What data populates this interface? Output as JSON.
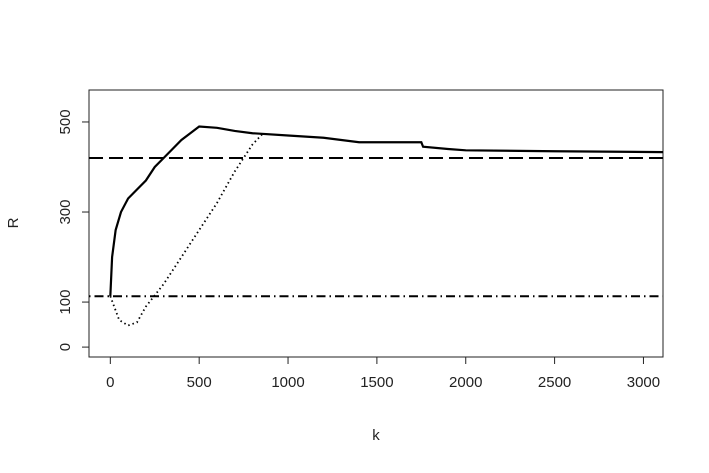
{
  "chart_data": {
    "type": "line",
    "xlabel": "k",
    "ylabel": "R",
    "xlim": [
      -120,
      3110
    ],
    "ylim": [
      -22,
      571
    ],
    "xticks": [
      0,
      500,
      1000,
      1500,
      2000,
      2500,
      3000
    ],
    "yticks": [
      0,
      100,
      300,
      500
    ],
    "series": [
      {
        "color": "#000000",
        "style": "solid",
        "x": [
          0,
          10,
          30,
          60,
          100,
          150,
          200,
          250,
          300,
          350,
          400,
          450,
          500,
          600,
          700,
          800,
          1000,
          1200,
          1400,
          1750,
          1760,
          1900,
          2000,
          2500,
          3110
        ],
        "values": [
          113,
          200,
          260,
          300,
          330,
          350,
          370,
          400,
          420,
          440,
          460,
          475,
          490,
          487,
          480,
          475,
          470,
          465,
          455,
          455,
          445,
          440,
          437,
          435,
          433
        ]
      },
      {
        "color": "#000000",
        "style": "dotted",
        "x": [
          0,
          50,
          100,
          150,
          200,
          250,
          300,
          400,
          500,
          600,
          700,
          800,
          860
        ],
        "values": [
          113,
          60,
          48,
          55,
          90,
          115,
          140,
          200,
          260,
          320,
          390,
          450,
          475
        ]
      }
    ],
    "hlines": [
      {
        "value": 420,
        "color": "#000000",
        "style": "dashed"
      },
      {
        "value": 113,
        "color": "#000000",
        "style": "dotdash"
      }
    ]
  }
}
